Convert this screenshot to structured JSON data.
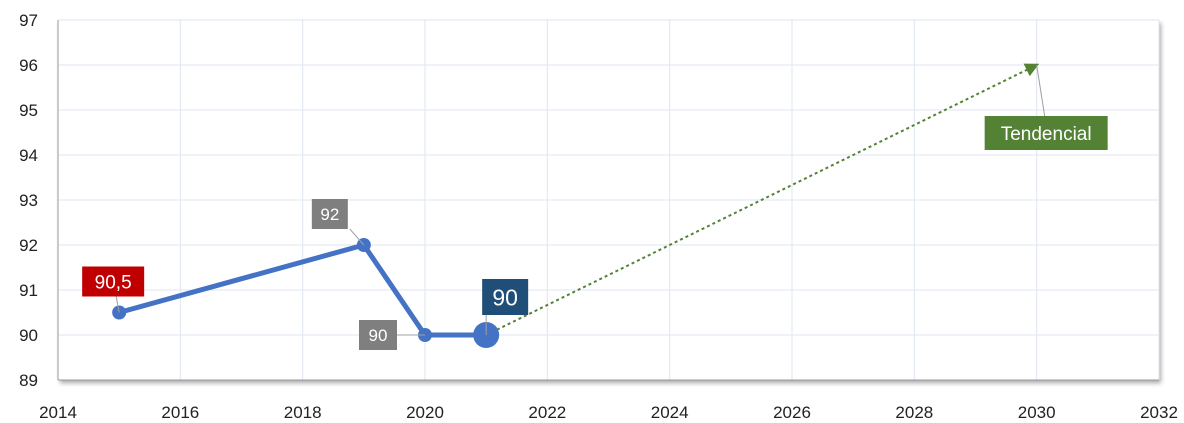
{
  "chart_data": {
    "type": "scatter",
    "title": "",
    "xlabel": "",
    "ylabel": "",
    "xlim": [
      2014,
      2032
    ],
    "ylim": [
      89,
      97
    ],
    "x_ticks": [
      "2014",
      "2016",
      "2018",
      "2020",
      "2022",
      "2024",
      "2026",
      "2028",
      "2030",
      "2032"
    ],
    "y_ticks": [
      "89",
      "90",
      "91",
      "92",
      "93",
      "94",
      "95",
      "96",
      "97"
    ],
    "grid": true,
    "legend": "none",
    "series": [
      {
        "color": "#4472C4",
        "points": [
          {
            "x": 2015,
            "y": 90.5
          },
          {
            "x": 2019,
            "y": 92
          },
          {
            "x": 2020,
            "y": 90
          },
          {
            "x": 2021,
            "y": 90
          }
        ]
      }
    ],
    "trend": {
      "name": "Tendencial",
      "color": "#548235",
      "from": {
        "x": 2021,
        "y": 90
      },
      "to": {
        "x": 2030,
        "y": 96
      }
    },
    "data_labels": [
      {
        "text": "90,5",
        "x": 2015,
        "y": 90.5,
        "color": "#C00000"
      },
      {
        "text": "92",
        "x": 2019,
        "y": 92,
        "color": "#7F7F7F"
      },
      {
        "text": "90",
        "x": 2020,
        "y": 90,
        "color": "#7F7F7F"
      },
      {
        "text": "90",
        "x": 2021,
        "y": 90,
        "color": "#1F4E79"
      },
      {
        "text": "Tendencial",
        "x": 2030,
        "y": 96,
        "color": "#548235"
      }
    ]
  }
}
